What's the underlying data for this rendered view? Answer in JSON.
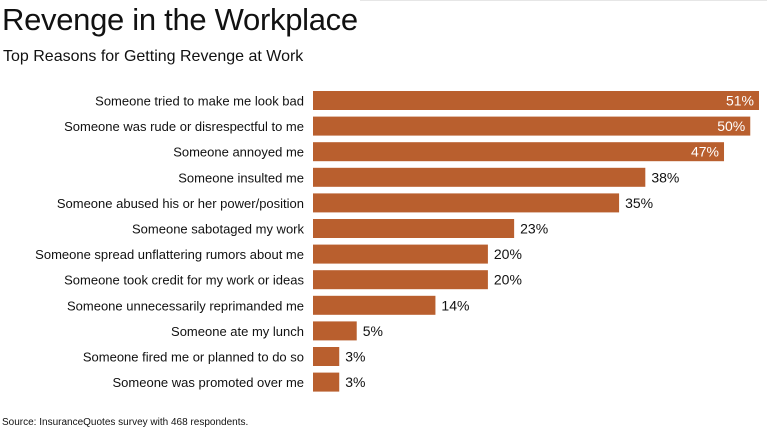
{
  "header": {
    "title": "Revenge in the Workplace",
    "subtitle": "Top Reasons for Getting Revenge at Work"
  },
  "footer": {
    "source": "Source: InsuranceQuotes survey with 468 respondents."
  },
  "colors": {
    "bar": "#b95f2e",
    "label_inside": "#ffffff",
    "label_outside": "#111111"
  },
  "chart_data": {
    "type": "bar",
    "orientation": "horizontal",
    "title": "Revenge in the Workplace",
    "subtitle": "Top Reasons for Getting Revenge at Work",
    "xlim": [
      0,
      51
    ],
    "grid": false,
    "categories": [
      "Someone tried to make me look bad",
      "Someone was rude or disrespectful to me",
      "Someone annoyed me",
      "Someone insulted me",
      "Someone abused his or her power/position",
      "Someone sabotaged my work",
      "Someone spread unflattering rumors about me",
      "Someone took credit for my work or ideas",
      "Someone unnecessarily reprimanded me",
      "Someone ate my lunch",
      "Someone fired me or planned to do so",
      "Someone was promoted over me"
    ],
    "values": [
      51,
      50,
      47,
      38,
      35,
      23,
      20,
      20,
      14,
      5,
      3,
      3
    ],
    "data_labels": [
      "51%",
      "50%",
      "47%",
      "38%",
      "35%",
      "23%",
      "20%",
      "20%",
      "14%",
      "5%",
      "3%",
      "3%"
    ]
  }
}
